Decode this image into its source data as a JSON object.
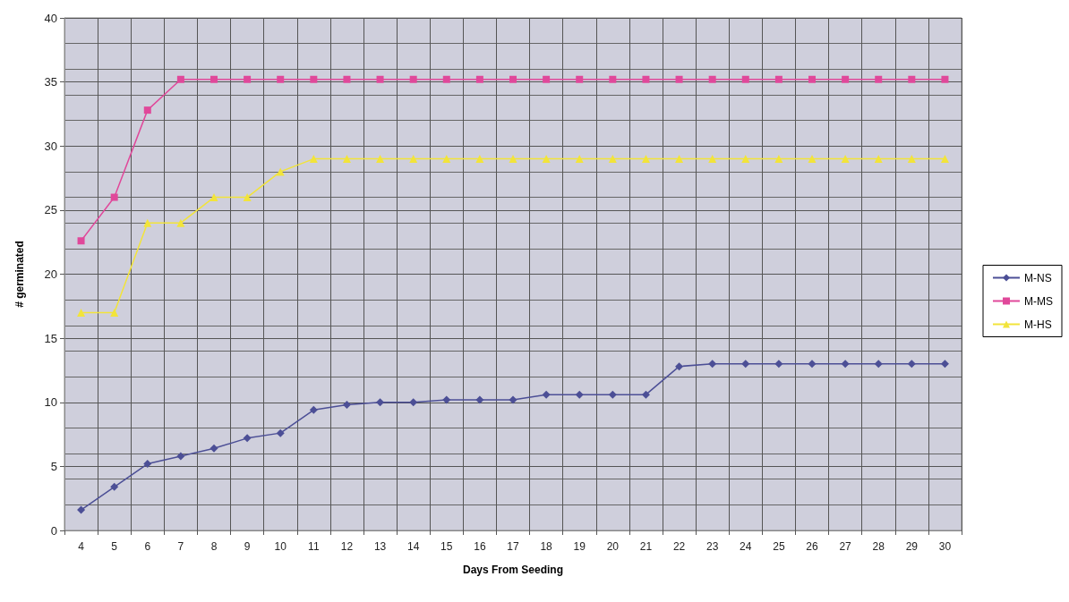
{
  "chart_data": {
    "type": "line",
    "xlabel": "Days From Seeding",
    "ylabel": "# germinated",
    "categories": [
      "4",
      "5",
      "6",
      "7",
      "8",
      "9",
      "10",
      "11",
      "12",
      "13",
      "14",
      "15",
      "16",
      "17",
      "18",
      "19",
      "20",
      "21",
      "22",
      "23",
      "24",
      "25",
      "26",
      "27",
      "28",
      "29",
      "30"
    ],
    "series": [
      {
        "name": "M-NS",
        "color": "#4c4f96",
        "marker": "diamond",
        "values": [
          1.6,
          3.4,
          5.2,
          5.8,
          6.4,
          7.2,
          7.6,
          9.4,
          9.8,
          10,
          10,
          10.2,
          10.2,
          10.2,
          10.6,
          10.6,
          10.6,
          10.6,
          12.8,
          13,
          13,
          13,
          13,
          13,
          13,
          13,
          13
        ]
      },
      {
        "name": "M-MS",
        "color": "#e0489a",
        "marker": "square",
        "values": [
          22.6,
          26,
          32.8,
          35.2,
          35.2,
          35.2,
          35.2,
          35.2,
          35.2,
          35.2,
          35.2,
          35.2,
          35.2,
          35.2,
          35.2,
          35.2,
          35.2,
          35.2,
          35.2,
          35.2,
          35.2,
          35.2,
          35.2,
          35.2,
          35.2,
          35.2,
          35.2
        ]
      },
      {
        "name": "M-HS",
        "color": "#f2e43a",
        "marker": "triangle",
        "values": [
          17,
          17,
          24,
          24,
          26,
          26,
          28,
          29,
          29,
          29,
          29,
          29,
          29,
          29,
          29,
          29,
          29,
          29,
          29,
          29,
          29,
          29,
          29,
          29,
          29,
          29,
          29
        ]
      }
    ],
    "ylim": [
      0,
      40
    ],
    "yticks": [
      0,
      5,
      10,
      15,
      20,
      25,
      30,
      35,
      40
    ],
    "grid": true,
    "legend": "right",
    "line_style": "solid"
  }
}
